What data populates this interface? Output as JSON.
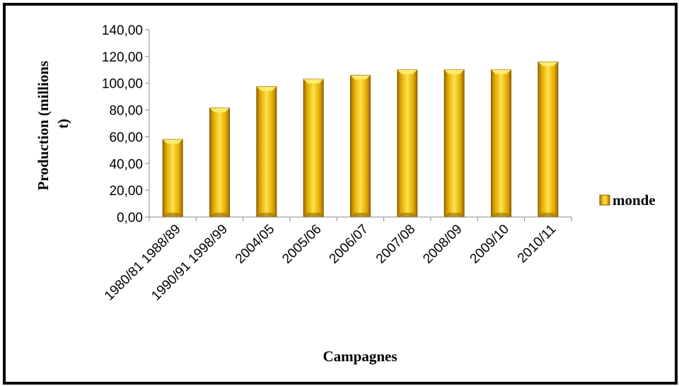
{
  "chart_data": {
    "type": "bar",
    "categories": [
      "1980/81 1988/89",
      "1990/91 1998/99",
      "2004/05",
      "2005/06",
      "2006/07",
      "2007/08",
      "2008/09",
      "2009/10",
      "2010/11"
    ],
    "series": [
      {
        "name": "monde",
        "values": [
          58,
          81.5,
          97.5,
          103,
          106,
          110,
          110,
          110,
          116
        ]
      }
    ],
    "yticks": [
      "0,00",
      "20,00",
      "40,00",
      "60,00",
      "80,00",
      "100,00",
      "120,00",
      "140,00"
    ],
    "ylim": [
      0,
      140
    ],
    "ylabel_line1": "Production (millions",
    "ylabel_line2": "t)",
    "xlabel": "Campagnes",
    "legend_position": "right",
    "grid": false,
    "colors": {
      "bar_light": "#ffe94a",
      "bar_mid": "#f2c200",
      "bar_dark": "#a87800",
      "bar_edge": "#8a5a00"
    }
  }
}
